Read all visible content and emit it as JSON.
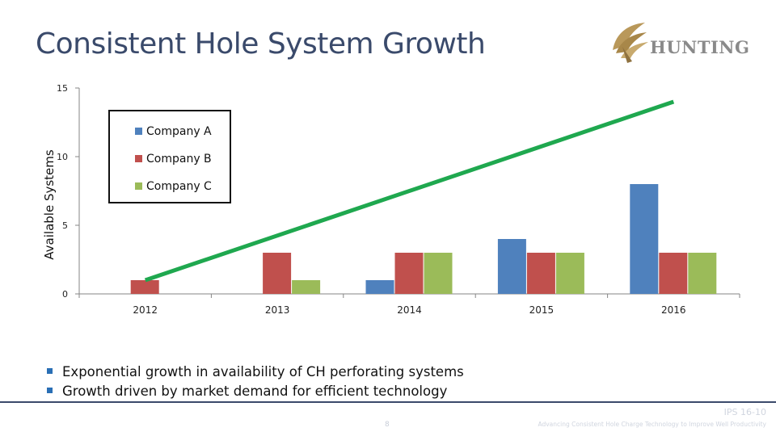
{
  "slide": {
    "title": "Consistent Hole System Growth",
    "logo_text": "HUNTING",
    "bullets": [
      "Exponential growth in availability of CH perforating systems",
      "Growth driven by market demand for efficient technology"
    ],
    "page_number": "8",
    "doc_code": "IPS 16-10",
    "tagline": "Advancing Consistent Hole Charge Technology to Improve Well Productivity"
  },
  "colors": {
    "title": "#3a4a6b",
    "company_a": "#4f81bd",
    "company_b": "#c0504d",
    "company_c": "#9bbb59",
    "trend": "#1fa84f",
    "bullet": "#2a6fb5"
  },
  "chart_data": {
    "type": "bar",
    "categories": [
      "2012",
      "2013",
      "2014",
      "2015",
      "2016"
    ],
    "series": [
      {
        "name": "Company A",
        "values": [
          0,
          0,
          1,
          4,
          8
        ]
      },
      {
        "name": "Company B",
        "values": [
          1,
          3,
          3,
          3,
          3
        ]
      },
      {
        "name": "Company C",
        "values": [
          0,
          1,
          3,
          3,
          3
        ]
      }
    ],
    "trend_line": {
      "x": [
        "2012",
        "2016"
      ],
      "y": [
        1,
        14
      ]
    },
    "ylabel": "Available Systems",
    "yticks": [
      0,
      5,
      10,
      15
    ],
    "ylim": [
      0,
      15
    ],
    "legend_position": "top-left",
    "grid": false
  }
}
